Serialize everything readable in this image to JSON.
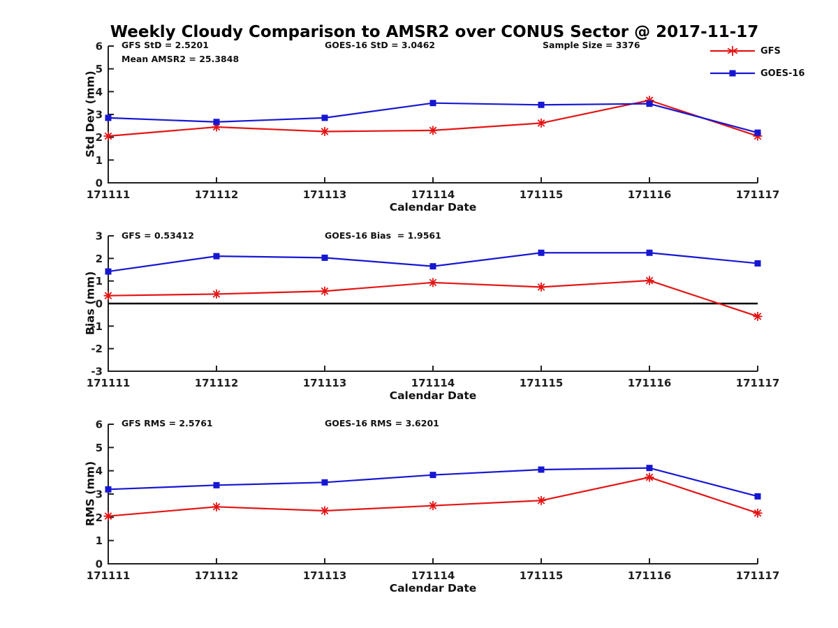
{
  "title": "Weekly Cloudy Comparison to AMSR2 over CONUS Sector @ 2017-11-17",
  "colors": {
    "gfs": "#e41414",
    "goes16": "#1717d2",
    "axis": "#1f1f1f",
    "zero_line": "#000000",
    "background": "#ffffff"
  },
  "legend": {
    "items": [
      {
        "label": "GFS",
        "marker": "asterisk-icon"
      },
      {
        "label": "GOES-16",
        "marker": "square-icon"
      }
    ]
  },
  "chart_data": [
    {
      "type": "line",
      "ylabel": "Std Dev (mm)",
      "xlabel": "Calendar Date",
      "categories": [
        "171111",
        "171112",
        "171113",
        "171114",
        "171115",
        "171116",
        "171117"
      ],
      "ylim": [
        0,
        6
      ],
      "yticks": [
        0,
        1,
        2,
        3,
        4,
        5,
        6
      ],
      "grid": false,
      "legend_position": "top-right",
      "annotations": {
        "left1": "GFS StD = 2.5201",
        "left2": "Mean AMSR2 = 25.3848",
        "mid": "GOES-16 StD = 3.0462",
        "right": "Sample Size = 3376"
      },
      "series": [
        {
          "name": "GFS",
          "marker": "asterisk",
          "color": "#e41414",
          "values": [
            2.05,
            2.45,
            2.25,
            2.3,
            2.62,
            3.62,
            2.05
          ]
        },
        {
          "name": "GOES-16",
          "marker": "square",
          "color": "#1717d2",
          "values": [
            2.85,
            2.67,
            2.85,
            3.5,
            3.42,
            3.47,
            2.2
          ]
        }
      ]
    },
    {
      "type": "line",
      "ylabel": "Bias (mm)",
      "xlabel": "Calendar Date",
      "categories": [
        "171111",
        "171112",
        "171113",
        "171114",
        "171115",
        "171116",
        "171117"
      ],
      "ylim": [
        -3,
        3
      ],
      "yticks": [
        -3,
        -2,
        -1,
        0,
        1,
        2,
        3
      ],
      "grid": false,
      "zero_line": true,
      "annotations": {
        "left1": "GFS = 0.53412",
        "mid": "GOES-16 Bias  = 1.9561"
      },
      "series": [
        {
          "name": "GFS",
          "marker": "asterisk",
          "color": "#e41414",
          "values": [
            0.35,
            0.42,
            0.55,
            0.93,
            0.73,
            1.02,
            -0.57
          ]
        },
        {
          "name": "GOES-16",
          "marker": "square",
          "color": "#1717d2",
          "values": [
            1.42,
            2.1,
            2.03,
            1.65,
            2.25,
            2.25,
            1.78
          ]
        }
      ]
    },
    {
      "type": "line",
      "ylabel": "RMS (mm)",
      "xlabel": "Calendar Date",
      "categories": [
        "171111",
        "171112",
        "171113",
        "171114",
        "171115",
        "171116",
        "171117"
      ],
      "ylim": [
        0,
        6
      ],
      "yticks": [
        0,
        1,
        2,
        3,
        4,
        5,
        6
      ],
      "grid": false,
      "annotations": {
        "left1": "GFS RMS = 2.5761",
        "mid": "GOES-16 RMS = 3.6201"
      },
      "series": [
        {
          "name": "GFS",
          "marker": "asterisk",
          "color": "#e41414",
          "values": [
            2.05,
            2.45,
            2.28,
            2.5,
            2.72,
            3.72,
            2.18
          ]
        },
        {
          "name": "GOES-16",
          "marker": "square",
          "color": "#1717d2",
          "values": [
            3.2,
            3.38,
            3.5,
            3.82,
            4.05,
            4.12,
            2.9
          ]
        }
      ]
    }
  ]
}
